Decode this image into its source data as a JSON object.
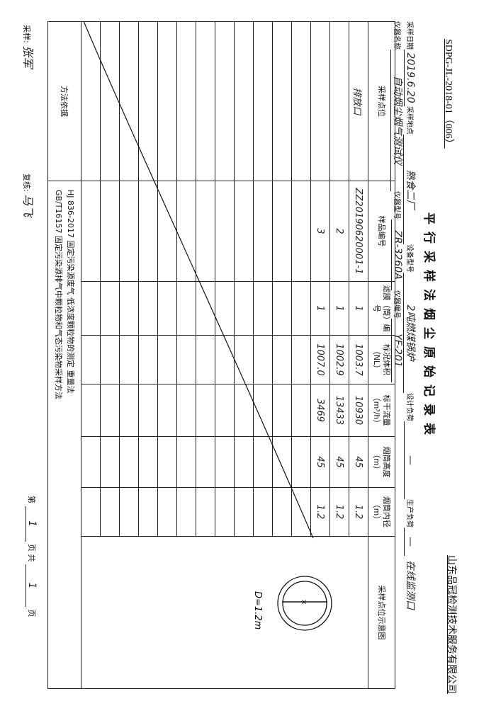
{
  "doc_code": "SDPG-JL-2018-01（006）",
  "company": "山东品冠检测技术服务有限公司",
  "title": "平行采样法烟尘原始记录表",
  "info": {
    "sample_date_label": "采样日期",
    "sample_date": "2019.6.20",
    "sample_site_label": "采样地点",
    "sample_site": "熟食二厂",
    "equipment_model_label": "设备型号",
    "equipment_model": "2吨燃煤锅炉",
    "design_load_label": "设计负荷",
    "design_load": "—",
    "production_load_label": "生产负荷",
    "production_load": "—",
    "location_note": "在线监测口",
    "instrument_name_label": "仪器名称",
    "instrument_name": "自动烟尘烟气测试仪",
    "instrument_model_label": "仪器型号",
    "instrument_model": "ZR-3260A",
    "instrument_no_label": "仪器编号",
    "instrument_no": "YF-201"
  },
  "table": {
    "headers": [
      "采样点位",
      "样品编号",
      "滤膜（筒）编号",
      "标况体积（NL）",
      "标干流量（m³/h）",
      "烟筒高度（m）",
      "烟筒内径（m）",
      "采样点位示意图"
    ],
    "rows": [
      [
        "排放口",
        "ZZ20190620001-1",
        "1",
        "1003.7",
        "10930",
        "45",
        "1.2"
      ],
      [
        "",
        "2",
        "1",
        "1002.9",
        "13433",
        "45",
        "1.2"
      ],
      [
        "",
        "3",
        "1",
        "1007.0",
        "3469",
        "45",
        "1.2"
      ],
      [
        "",
        "",
        "",
        "",
        "",
        "",
        ""
      ],
      [
        "",
        "",
        "",
        "",
        "",
        "",
        ""
      ],
      [
        "",
        "",
        "",
        "",
        "",
        "",
        ""
      ],
      [
        "",
        "",
        "",
        "",
        "",
        "",
        ""
      ],
      [
        "",
        "",
        "",
        "",
        "",
        "",
        ""
      ],
      [
        "",
        "",
        "",
        "",
        "",
        "",
        ""
      ],
      [
        "",
        "",
        "",
        "",
        "",
        "",
        ""
      ],
      [
        "",
        "",
        "",
        "",
        "",
        "",
        ""
      ],
      [
        "",
        "",
        "",
        "",
        "",
        "",
        ""
      ],
      [
        "",
        "",
        "",
        "",
        "",
        "",
        ""
      ],
      [
        "",
        "",
        "",
        "",
        "",
        "",
        ""
      ],
      [
        "",
        "",
        "",
        "",
        "",
        "",
        ""
      ]
    ],
    "diagram_label": "D=1.2m",
    "method_label": "方法依据",
    "methods": [
      "HJ 836-2017  固定污染源废气 低浓度颗粒物的测定 重量法",
      "GB/T16157  固定污染源排气中颗粒物和气态污染物采样方法"
    ]
  },
  "footer": {
    "sampler_label": "采样:",
    "sampler": "张军",
    "reviewer_label": "复核:",
    "reviewer": "马飞",
    "page_prefix": "第",
    "page_no": "1",
    "page_mid": "页 共",
    "page_total": "1",
    "page_suffix": "页"
  }
}
